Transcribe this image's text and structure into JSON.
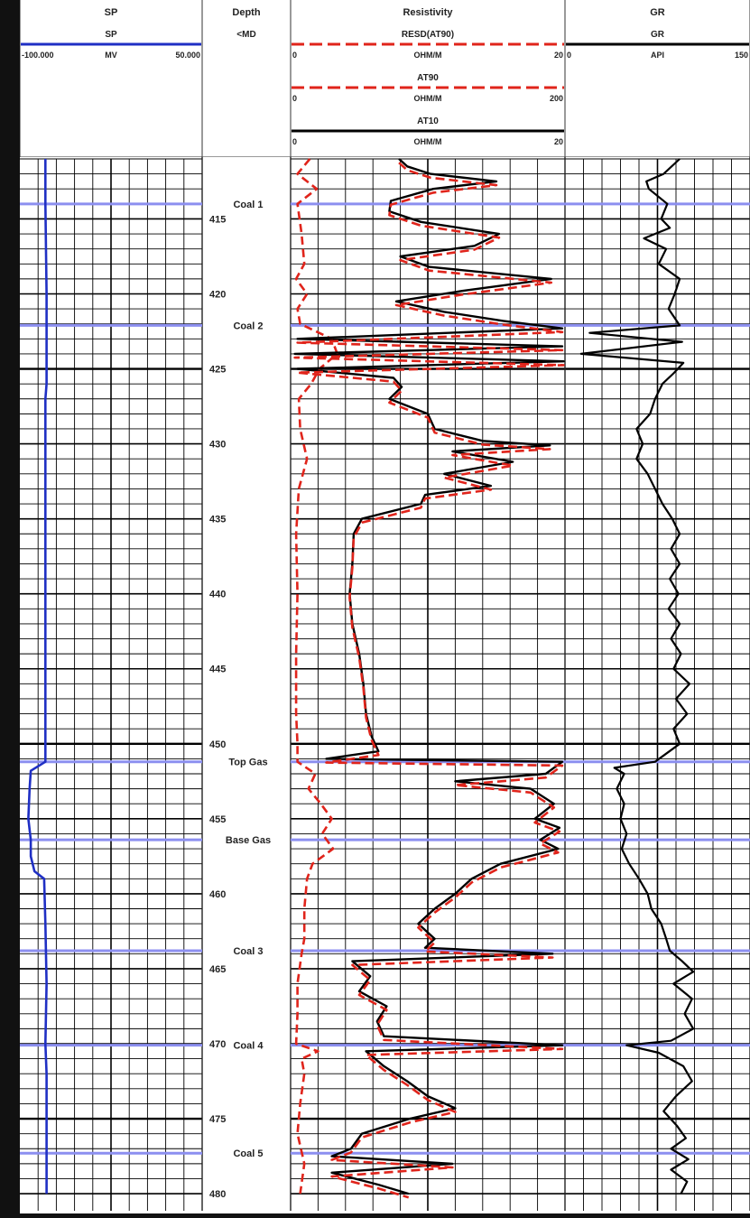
{
  "chart_data": {
    "type": "line",
    "tracks": [
      {
        "title": "SP",
        "curves": [
          {
            "name": "SP",
            "unit": "MV",
            "min": "-100.000",
            "max": "50.000",
            "scale": [
              -100,
              50
            ],
            "color": "#1f2fc4",
            "style": "solid"
          }
        ]
      },
      {
        "title": "Depth",
        "subtitle": "<MD"
      },
      {
        "title": "Resistivity",
        "curves": [
          {
            "name": "RESD(AT90)",
            "unit": "OHM/M",
            "min": "0",
            "max": "20",
            "scale": [
              0,
              20
            ],
            "color": "#e0241b",
            "style": "dashed"
          },
          {
            "name": "AT90",
            "unit": "OHM/M",
            "min": "0",
            "max": "200",
            "scale": [
              0,
              200
            ],
            "color": "#e0241b",
            "style": "dashed"
          },
          {
            "name": "AT10",
            "unit": "OHM/M",
            "min": "0",
            "max": "20",
            "scale": [
              0,
              20
            ],
            "color": "#000000",
            "style": "solid"
          }
        ]
      },
      {
        "title": "GR",
        "curves": [
          {
            "name": "GR",
            "unit": "API",
            "min": "0",
            "max": "150",
            "scale": [
              0,
              150
            ],
            "color": "#000000",
            "style": "solid"
          }
        ]
      }
    ],
    "depth_range": [
      411,
      480
    ],
    "depth_ticks": [
      "415",
      "420",
      "425",
      "430",
      "435",
      "440",
      "445",
      "450",
      "455",
      "460",
      "465",
      "470",
      "475",
      "480"
    ],
    "markers": [
      {
        "name": "Coal 1",
        "depth": 414
      },
      {
        "name": "Coal 2",
        "depth": 422.1
      },
      {
        "name": "Top Gas",
        "depth": 451.2
      },
      {
        "name": "Base Gas",
        "depth": 456.4
      },
      {
        "name": "Coal 3",
        "depth": 463.8
      },
      {
        "name": "Coal 4",
        "depth": 470.1
      },
      {
        "name": "Coal 5",
        "depth": 477.3
      }
    ],
    "sp_values": [
      [
        411,
        -79
      ],
      [
        414,
        -79
      ],
      [
        420,
        -78
      ],
      [
        426,
        -78
      ],
      [
        427,
        -79
      ],
      [
        430,
        -79
      ],
      [
        440,
        -79
      ],
      [
        450,
        -79
      ],
      [
        451.2,
        -79
      ],
      [
        451.8,
        -91
      ],
      [
        453,
        -92
      ],
      [
        455,
        -93
      ],
      [
        456.4,
        -91
      ],
      [
        457.5,
        -91
      ],
      [
        458.5,
        -88
      ],
      [
        459,
        -80
      ],
      [
        462,
        -79
      ],
      [
        466,
        -78
      ],
      [
        470,
        -79
      ],
      [
        472,
        -78
      ],
      [
        480,
        -78
      ]
    ],
    "rd_values": [
      [
        411,
        7.9
      ],
      [
        411.5,
        8.5
      ],
      [
        412,
        10.2
      ],
      [
        412.5,
        15
      ],
      [
        413,
        10.4
      ],
      [
        413.8,
        7.3
      ],
      [
        414.5,
        7.2
      ],
      [
        415.2,
        9.5
      ],
      [
        416,
        15.2
      ],
      [
        416.8,
        13.4
      ],
      [
        417.5,
        8.0
      ],
      [
        418.2,
        10.1
      ],
      [
        419,
        19.0
      ],
      [
        419.8,
        12.5
      ],
      [
        420.5,
        7.7
      ],
      [
        421.2,
        11.2
      ],
      [
        421.8,
        15.5
      ],
      [
        422.3,
        19.8
      ],
      [
        423,
        0.5
      ],
      [
        423.5,
        19.8
      ],
      [
        424,
        0.3
      ],
      [
        424.5,
        19.9
      ],
      [
        425,
        0.5
      ],
      [
        425.6,
        7.5
      ],
      [
        426.2,
        8.1
      ],
      [
        427,
        7.2
      ],
      [
        428,
        10.0
      ],
      [
        429,
        10.5
      ],
      [
        429.8,
        14.0
      ],
      [
        430.1,
        18.9
      ],
      [
        430.5,
        11.8
      ],
      [
        431.2,
        16.2
      ],
      [
        432,
        11.2
      ],
      [
        432.8,
        14.6
      ],
      [
        433.4,
        9.8
      ],
      [
        434,
        9.5
      ],
      [
        435,
        5.2
      ],
      [
        436,
        4.6
      ],
      [
        438,
        4.5
      ],
      [
        440,
        4.3
      ],
      [
        442,
        4.5
      ],
      [
        444,
        5.0
      ],
      [
        446,
        5.3
      ],
      [
        448,
        5.5
      ],
      [
        449.5,
        5.9
      ],
      [
        450.5,
        6.4
      ],
      [
        451,
        2.6
      ],
      [
        451.2,
        19.8
      ],
      [
        452,
        18.6
      ],
      [
        452.5,
        12.0
      ],
      [
        453,
        17.5
      ],
      [
        454,
        19.2
      ],
      [
        455,
        17.8
      ],
      [
        455.6,
        19.6
      ],
      [
        456.4,
        18.2
      ],
      [
        457,
        19.5
      ],
      [
        458,
        15.3
      ],
      [
        459,
        13.2
      ],
      [
        460,
        12.0
      ],
      [
        461,
        10.5
      ],
      [
        462,
        9.3
      ],
      [
        463,
        10.5
      ],
      [
        463.6,
        9.8
      ],
      [
        464,
        19.1
      ],
      [
        464.5,
        4.5
      ],
      [
        465.5,
        5.8
      ],
      [
        466.5,
        5.0
      ],
      [
        467.5,
        7.0
      ],
      [
        468.5,
        6.3
      ],
      [
        469.5,
        6.8
      ],
      [
        470.1,
        19.8
      ],
      [
        470.5,
        5.5
      ],
      [
        471.5,
        6.8
      ],
      [
        472.5,
        8.5
      ],
      [
        473.5,
        10.0
      ],
      [
        474.3,
        12.0
      ],
      [
        475,
        8.7
      ],
      [
        476,
        5.2
      ],
      [
        477,
        4.4
      ],
      [
        477.5,
        3.0
      ],
      [
        478,
        11.8
      ],
      [
        478.6,
        3.0
      ],
      [
        479.4,
        6.4
      ],
      [
        480,
        8.6
      ]
    ],
    "rs_values": [
      [
        411,
        1.4
      ],
      [
        412,
        0.5
      ],
      [
        413,
        1.9
      ],
      [
        414,
        0.5
      ],
      [
        416,
        0.8
      ],
      [
        418,
        1.0
      ],
      [
        419,
        0.4
      ],
      [
        420,
        1.2
      ],
      [
        421,
        0.5
      ],
      [
        422,
        0.7
      ],
      [
        423,
        3.0
      ],
      [
        424,
        3.4
      ],
      [
        425,
        2.1
      ],
      [
        426,
        1.5
      ],
      [
        427,
        0.6
      ],
      [
        429,
        0.7
      ],
      [
        431,
        1.2
      ],
      [
        433,
        0.6
      ],
      [
        436,
        0.4
      ],
      [
        440,
        0.5
      ],
      [
        444,
        0.4
      ],
      [
        448,
        0.4
      ],
      [
        450,
        0.5
      ],
      [
        451.2,
        0.5
      ],
      [
        452,
        1.8
      ],
      [
        453,
        1.3
      ],
      [
        454,
        2.2
      ],
      [
        455,
        3.0
      ],
      [
        456,
        2.3
      ],
      [
        457,
        3.1
      ],
      [
        458,
        1.6
      ],
      [
        459,
        1.2
      ],
      [
        461,
        1.0
      ],
      [
        463,
        1.0
      ],
      [
        464,
        0.8
      ],
      [
        466,
        0.5
      ],
      [
        468,
        0.5
      ],
      [
        470,
        0.4
      ],
      [
        470.5,
        2.0
      ],
      [
        471,
        0.8
      ],
      [
        472,
        1.0
      ],
      [
        474,
        0.7
      ],
      [
        476,
        0.5
      ],
      [
        478,
        1.0
      ],
      [
        480,
        0.7
      ]
    ],
    "gr_values": [
      [
        411,
        93
      ],
      [
        412,
        80
      ],
      [
        412.5,
        66
      ],
      [
        413,
        68
      ],
      [
        414,
        83
      ],
      [
        415,
        78
      ],
      [
        415.6,
        85
      ],
      [
        416.3,
        64
      ],
      [
        417,
        82
      ],
      [
        418,
        76
      ],
      [
        419,
        93
      ],
      [
        420,
        89
      ],
      [
        421,
        84
      ],
      [
        422.1,
        93
      ],
      [
        422.6,
        20
      ],
      [
        423.2,
        95
      ],
      [
        424,
        13
      ],
      [
        424.6,
        96
      ],
      [
        425.3,
        88
      ],
      [
        426,
        79
      ],
      [
        427,
        73
      ],
      [
        428,
        69
      ],
      [
        429,
        58
      ],
      [
        430,
        63
      ],
      [
        431,
        58
      ],
      [
        432,
        67
      ],
      [
        433,
        73
      ],
      [
        434,
        79
      ],
      [
        435,
        87
      ],
      [
        436,
        93
      ],
      [
        437,
        86
      ],
      [
        438,
        93
      ],
      [
        439,
        85
      ],
      [
        440,
        92
      ],
      [
        441,
        84
      ],
      [
        442,
        93
      ],
      [
        443,
        86
      ],
      [
        444,
        94
      ],
      [
        445,
        88
      ],
      [
        446,
        101
      ],
      [
        447,
        90
      ],
      [
        448,
        99
      ],
      [
        449,
        88
      ],
      [
        450,
        93
      ],
      [
        451.2,
        73
      ],
      [
        451.6,
        40
      ],
      [
        452,
        48
      ],
      [
        453,
        42
      ],
      [
        454,
        48
      ],
      [
        455,
        45
      ],
      [
        456,
        50
      ],
      [
        457,
        46
      ],
      [
        458,
        52
      ],
      [
        459,
        60
      ],
      [
        460,
        67
      ],
      [
        461,
        70
      ],
      [
        462,
        78
      ],
      [
        463,
        82
      ],
      [
        463.8,
        85
      ],
      [
        464.5,
        95
      ],
      [
        465.2,
        104
      ],
      [
        466,
        88
      ],
      [
        467,
        103
      ],
      [
        468,
        97
      ],
      [
        469,
        104
      ],
      [
        469.8,
        86
      ],
      [
        470.1,
        50
      ],
      [
        470.6,
        76
      ],
      [
        471.5,
        96
      ],
      [
        472.5,
        103
      ],
      [
        473.5,
        90
      ],
      [
        474.5,
        80
      ],
      [
        475.5,
        91
      ],
      [
        476.3,
        98
      ],
      [
        477,
        86
      ],
      [
        477.7,
        100
      ],
      [
        478.4,
        86
      ],
      [
        479.2,
        99
      ],
      [
        480,
        94
      ]
    ]
  }
}
